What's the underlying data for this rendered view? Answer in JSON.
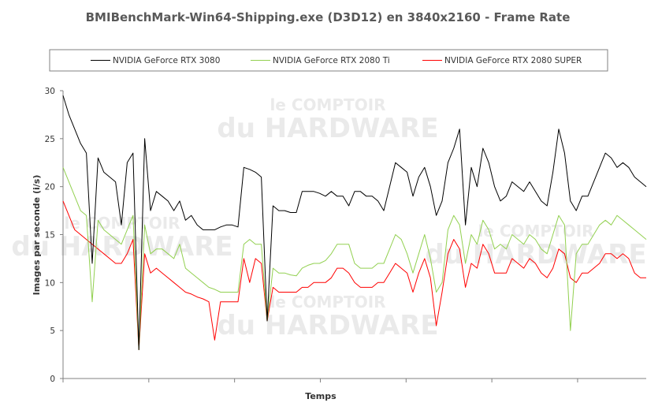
{
  "chart_data": {
    "type": "line",
    "title": "BMIBenchMark-Win64-Shipping.exe (D3D12) en 3840x2160 - Frame Rate",
    "xlabel": "Temps",
    "ylabel": "Images par seconde (i/s)",
    "ylim": [
      0,
      30
    ],
    "yticks": [
      "0",
      "5",
      "10",
      "15",
      "20",
      "25",
      "30"
    ],
    "grid": false,
    "legend_position": "top",
    "watermark": {
      "line1": "le COMPTOIR",
      "line2": "du HARDWARE"
    },
    "series": [
      {
        "name": "NVIDIA GeForce RTX 3080",
        "color": "#000000",
        "x": [
          0,
          1,
          2,
          3,
          4,
          5,
          6,
          7,
          8,
          9,
          10,
          11,
          12,
          13,
          14,
          15,
          16,
          17,
          18,
          19,
          20,
          21,
          22,
          23,
          24,
          25,
          26,
          27,
          28,
          29,
          30,
          31,
          32,
          33,
          34,
          35,
          36,
          37,
          38,
          39,
          40,
          41,
          42,
          43,
          44,
          45,
          46,
          47,
          48,
          49,
          50,
          51,
          52,
          53,
          54,
          55,
          56,
          57,
          58,
          59,
          60,
          61,
          62,
          63,
          64,
          65,
          66,
          67,
          68,
          69,
          70,
          71,
          72,
          73,
          74,
          75,
          76,
          77,
          78,
          79,
          80,
          81,
          82,
          83,
          84,
          85,
          86,
          87,
          88,
          89,
          90,
          91,
          92,
          93,
          94,
          95,
          96,
          97,
          98,
          99,
          100
        ],
        "values": [
          29.5,
          27.5,
          26.0,
          24.5,
          23.5,
          12.0,
          23.0,
          21.5,
          21.0,
          20.5,
          16.0,
          22.5,
          23.5,
          3.0,
          25.0,
          17.5,
          19.5,
          19.0,
          18.5,
          17.5,
          18.5,
          16.5,
          17.0,
          16.0,
          15.5,
          15.5,
          15.5,
          15.8,
          16.0,
          16.0,
          15.8,
          22.0,
          21.8,
          21.5,
          21.0,
          6.0,
          18.0,
          17.5,
          17.5,
          17.3,
          17.3,
          19.5,
          19.5,
          19.5,
          19.3,
          19.0,
          19.5,
          19.0,
          19.0,
          18.0,
          19.5,
          19.5,
          19.0,
          19.0,
          18.5,
          17.5,
          20.0,
          22.5,
          22.0,
          21.5,
          19.0,
          21.0,
          22.0,
          20.0,
          17.0,
          18.5,
          22.5,
          24.0,
          26.0,
          16.0,
          22.0,
          20.0,
          24.0,
          22.5,
          20.0,
          18.5,
          19.0,
          20.5,
          20.0,
          19.5,
          20.5,
          19.5,
          18.5,
          18.0,
          21.5,
          26.0,
          23.5,
          18.5,
          17.5,
          19.0,
          19.0,
          20.5,
          22.0,
          23.5,
          23.0,
          22.0,
          22.5,
          22.0,
          21.0,
          20.5,
          20.0
        ]
      },
      {
        "name": "NVIDIA GeForce RTX 2080 Ti",
        "color": "#92d050",
        "x": [
          0,
          1,
          2,
          3,
          4,
          5,
          6,
          7,
          8,
          9,
          10,
          11,
          12,
          13,
          14,
          15,
          16,
          17,
          18,
          19,
          20,
          21,
          22,
          23,
          24,
          25,
          26,
          27,
          28,
          29,
          30,
          31,
          32,
          33,
          34,
          35,
          36,
          37,
          38,
          39,
          40,
          41,
          42,
          43,
          44,
          45,
          46,
          47,
          48,
          49,
          50,
          51,
          52,
          53,
          54,
          55,
          56,
          57,
          58,
          59,
          60,
          61,
          62,
          63,
          64,
          65,
          66,
          67,
          68,
          69,
          70,
          71,
          72,
          73,
          74,
          75,
          76,
          77,
          78,
          79,
          80,
          81,
          82,
          83,
          84,
          85,
          86,
          87,
          88,
          89,
          90,
          91,
          92,
          93,
          94,
          95,
          96,
          97,
          98,
          99,
          100
        ],
        "values": [
          22.0,
          20.5,
          19.0,
          17.5,
          17.0,
          8.0,
          16.5,
          15.5,
          15.0,
          14.5,
          14.0,
          15.5,
          17.0,
          3.0,
          16.0,
          13.0,
          13.5,
          13.5,
          13.0,
          12.5,
          14.0,
          11.5,
          11.0,
          10.5,
          10.0,
          9.5,
          9.3,
          9.0,
          9.0,
          9.0,
          9.0,
          14.0,
          14.5,
          14.0,
          14.0,
          6.0,
          11.5,
          11.0,
          11.0,
          10.8,
          10.7,
          11.5,
          11.8,
          12.0,
          12.0,
          12.3,
          13.0,
          14.0,
          14.0,
          14.0,
          12.0,
          11.5,
          11.5,
          11.5,
          12.0,
          12.0,
          13.5,
          15.0,
          14.5,
          13.0,
          11.0,
          13.0,
          15.0,
          12.5,
          9.0,
          10.0,
          15.5,
          17.0,
          16.0,
          12.0,
          15.0,
          14.0,
          16.5,
          15.5,
          13.5,
          14.0,
          13.5,
          15.0,
          14.5,
          14.0,
          15.0,
          14.5,
          13.5,
          13.0,
          15.0,
          17.0,
          16.0,
          5.0,
          13.0,
          14.0,
          14.0,
          15.0,
          16.0,
          16.5,
          16.0,
          17.0,
          16.5,
          16.0,
          15.5,
          15.0,
          14.5
        ]
      },
      {
        "name": "NVIDIA GeForce RTX 2080 SUPER",
        "color": "#ff0000",
        "x": [
          0,
          1,
          2,
          3,
          4,
          5,
          6,
          7,
          8,
          9,
          10,
          11,
          12,
          13,
          14,
          15,
          16,
          17,
          18,
          19,
          20,
          21,
          22,
          23,
          24,
          25,
          26,
          27,
          28,
          29,
          30,
          31,
          32,
          33,
          34,
          35,
          36,
          37,
          38,
          39,
          40,
          41,
          42,
          43,
          44,
          45,
          46,
          47,
          48,
          49,
          50,
          51,
          52,
          53,
          54,
          55,
          56,
          57,
          58,
          59,
          60,
          61,
          62,
          63,
          64,
          65,
          66,
          67,
          68,
          69,
          70,
          71,
          72,
          73,
          74,
          75,
          76,
          77,
          78,
          79,
          80,
          81,
          82,
          83,
          84,
          85,
          86,
          87,
          88,
          89,
          90,
          91,
          92,
          93,
          94,
          95,
          96,
          97,
          98,
          99,
          100
        ],
        "values": [
          18.5,
          17.0,
          15.5,
          15.0,
          14.5,
          14.0,
          13.5,
          13.0,
          12.5,
          12.0,
          12.0,
          13.0,
          14.5,
          3.0,
          13.0,
          11.0,
          11.5,
          11.0,
          10.5,
          10.0,
          9.5,
          9.0,
          8.8,
          8.5,
          8.3,
          8.0,
          4.0,
          8.0,
          8.0,
          8.0,
          8.0,
          12.5,
          10.0,
          12.5,
          12.0,
          6.0,
          9.5,
          9.0,
          9.0,
          9.0,
          9.0,
          9.5,
          9.5,
          10.0,
          10.0,
          10.0,
          10.5,
          11.5,
          11.5,
          11.0,
          10.0,
          9.5,
          9.5,
          9.5,
          10.0,
          10.0,
          11.0,
          12.0,
          11.5,
          11.0,
          9.0,
          11.0,
          12.5,
          10.5,
          5.5,
          9.0,
          13.0,
          14.5,
          13.5,
          9.5,
          12.0,
          11.5,
          14.0,
          13.0,
          11.0,
          11.0,
          11.0,
          12.5,
          12.0,
          11.5,
          12.5,
          12.0,
          11.0,
          10.5,
          11.5,
          13.5,
          13.0,
          10.5,
          10.0,
          11.0,
          11.0,
          11.5,
          12.0,
          13.0,
          13.0,
          12.5,
          13.0,
          12.5,
          11.0,
          10.5,
          10.5
        ]
      }
    ]
  }
}
